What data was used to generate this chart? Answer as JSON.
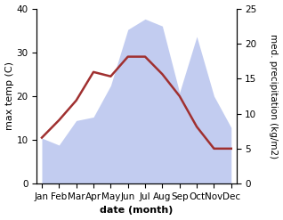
{
  "months": [
    "Jan",
    "Feb",
    "Mar",
    "Apr",
    "May",
    "Jun",
    "Jul",
    "Aug",
    "Sep",
    "Oct",
    "Nov",
    "Dec"
  ],
  "month_positions": [
    0,
    1,
    2,
    3,
    4,
    5,
    6,
    7,
    8,
    9,
    10,
    11
  ],
  "temperature": [
    10.5,
    14.5,
    19.0,
    25.5,
    24.5,
    29.0,
    29.0,
    25.0,
    20.0,
    13.0,
    8.0,
    8.0
  ],
  "precipitation": [
    6.5,
    5.5,
    9.0,
    9.5,
    14.0,
    22.0,
    23.5,
    22.5,
    13.0,
    21.0,
    12.5,
    8.0
  ],
  "temp_color": "#a03030",
  "precip_color": "#b8c4ee",
  "temp_ylim": [
    0,
    40
  ],
  "precip_ylim": [
    0,
    25
  ],
  "temp_yticks": [
    0,
    10,
    20,
    30,
    40
  ],
  "precip_yticks": [
    0,
    5,
    10,
    15,
    20,
    25
  ],
  "ylabel_left": "max temp (C)",
  "ylabel_right": "med. precipitation (kg/m2)",
  "xlabel": "date (month)",
  "bg_color": "#ffffff",
  "label_fontsize": 8,
  "tick_fontsize": 7.5
}
